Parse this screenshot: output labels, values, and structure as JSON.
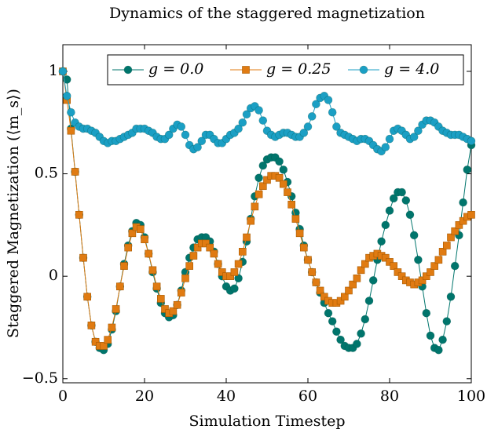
{
  "chart_data": {
    "type": "line",
    "title": "Dynamics of the staggered magnetization",
    "xlabel": "Simulation Timestep",
    "ylabel": "Staggered Magnetization (⟨m_s⟩)",
    "x": [
      0,
      1,
      2,
      3,
      4,
      5,
      6,
      7,
      8,
      9,
      10,
      11,
      12,
      13,
      14,
      15,
      16,
      17,
      18,
      19,
      20,
      21,
      22,
      23,
      24,
      25,
      26,
      27,
      28,
      29,
      30,
      31,
      32,
      33,
      34,
      35,
      36,
      37,
      38,
      39,
      40,
      41,
      42,
      43,
      44,
      45,
      46,
      47,
      48,
      49,
      50,
      51,
      52,
      53,
      54,
      55,
      56,
      57,
      58,
      59,
      60,
      61,
      62,
      63,
      64,
      65,
      66,
      67,
      68,
      69,
      70,
      71,
      72,
      73,
      74,
      75,
      76,
      77,
      78,
      79,
      80,
      81,
      82,
      83,
      84,
      85,
      86,
      87,
      88,
      89,
      90,
      91,
      92,
      93,
      94,
      95,
      96,
      97,
      98,
      99,
      100
    ],
    "series": [
      {
        "name": "g = 0.0",
        "color": "#00756c",
        "marker": "circle",
        "values": [
          1.0,
          0.96,
          0.72,
          0.51,
          0.3,
          0.09,
          -0.1,
          -0.24,
          -0.32,
          -0.35,
          -0.36,
          -0.33,
          -0.26,
          -0.17,
          -0.05,
          0.06,
          0.15,
          0.22,
          0.26,
          0.25,
          0.19,
          0.11,
          0.02,
          -0.06,
          -0.13,
          -0.18,
          -0.2,
          -0.19,
          -0.14,
          -0.07,
          0.02,
          0.09,
          0.14,
          0.18,
          0.19,
          0.19,
          0.17,
          0.12,
          0.06,
          0.0,
          -0.05,
          -0.07,
          -0.06,
          -0.01,
          0.07,
          0.17,
          0.28,
          0.39,
          0.48,
          0.54,
          0.57,
          0.58,
          0.58,
          0.56,
          0.52,
          0.46,
          0.39,
          0.31,
          0.23,
          0.15,
          0.08,
          0.02,
          -0.03,
          -0.08,
          -0.13,
          -0.18,
          -0.22,
          -0.27,
          -0.31,
          -0.34,
          -0.35,
          -0.35,
          -0.33,
          -0.28,
          -0.21,
          -0.12,
          -0.02,
          0.08,
          0.17,
          0.25,
          0.32,
          0.38,
          0.41,
          0.41,
          0.37,
          0.3,
          0.2,
          0.08,
          -0.05,
          -0.18,
          -0.29,
          -0.35,
          -0.36,
          -0.31,
          -0.22,
          -0.1,
          0.05,
          0.2,
          0.36,
          0.52,
          0.64
        ]
      },
      {
        "name": "g = 0.25",
        "color": "#e07b12",
        "marker": "square",
        "values": [
          1.0,
          0.86,
          0.71,
          0.51,
          0.3,
          0.09,
          -0.1,
          -0.24,
          -0.32,
          -0.34,
          -0.34,
          -0.31,
          -0.25,
          -0.16,
          -0.05,
          0.05,
          0.14,
          0.21,
          0.24,
          0.23,
          0.18,
          0.11,
          0.03,
          -0.05,
          -0.11,
          -0.16,
          -0.18,
          -0.17,
          -0.14,
          -0.08,
          -0.01,
          0.05,
          0.1,
          0.14,
          0.16,
          0.16,
          0.14,
          0.11,
          0.06,
          0.02,
          0.0,
          0.0,
          0.02,
          0.06,
          0.12,
          0.19,
          0.27,
          0.34,
          0.4,
          0.44,
          0.47,
          0.49,
          0.49,
          0.48,
          0.45,
          0.41,
          0.35,
          0.28,
          0.21,
          0.14,
          0.08,
          0.02,
          -0.03,
          -0.07,
          -0.1,
          -0.12,
          -0.13,
          -0.13,
          -0.12,
          -0.1,
          -0.07,
          -0.04,
          -0.01,
          0.03,
          0.06,
          0.09,
          0.1,
          0.11,
          0.1,
          0.09,
          0.07,
          0.05,
          0.02,
          0.0,
          -0.02,
          -0.03,
          -0.04,
          -0.03,
          -0.02,
          0.0,
          0.02,
          0.05,
          0.08,
          0.12,
          0.15,
          0.19,
          0.22,
          0.25,
          0.27,
          0.29,
          0.3
        ]
      },
      {
        "name": "g = 4.0",
        "color": "#1b9fc4",
        "marker": "circle",
        "values": [
          1.0,
          0.88,
          0.8,
          0.75,
          0.73,
          0.72,
          0.72,
          0.71,
          0.7,
          0.68,
          0.66,
          0.65,
          0.66,
          0.66,
          0.67,
          0.68,
          0.69,
          0.7,
          0.72,
          0.72,
          0.72,
          0.71,
          0.7,
          0.68,
          0.67,
          0.67,
          0.69,
          0.72,
          0.74,
          0.73,
          0.69,
          0.64,
          0.62,
          0.63,
          0.66,
          0.69,
          0.69,
          0.67,
          0.65,
          0.65,
          0.67,
          0.69,
          0.7,
          0.72,
          0.75,
          0.79,
          0.82,
          0.83,
          0.81,
          0.76,
          0.71,
          0.69,
          0.68,
          0.69,
          0.7,
          0.7,
          0.69,
          0.68,
          0.68,
          0.7,
          0.73,
          0.78,
          0.84,
          0.87,
          0.88,
          0.86,
          0.8,
          0.73,
          0.7,
          0.69,
          0.68,
          0.67,
          0.66,
          0.67,
          0.67,
          0.66,
          0.64,
          0.62,
          0.61,
          0.63,
          0.67,
          0.71,
          0.72,
          0.71,
          0.69,
          0.67,
          0.68,
          0.71,
          0.74,
          0.76,
          0.76,
          0.75,
          0.73,
          0.71,
          0.7,
          0.69,
          0.69,
          0.69,
          0.68,
          0.67,
          0.66
        ]
      }
    ],
    "xlim": [
      0,
      100
    ],
    "xticks": [
      0,
      20,
      40,
      60,
      80,
      100
    ],
    "ylim": [
      -0.52,
      1.13
    ],
    "yticks": [
      {
        "value": -0.5,
        "label": "−0.5"
      },
      0,
      0.5,
      1
    ],
    "grid": false,
    "legend": "upper right"
  }
}
